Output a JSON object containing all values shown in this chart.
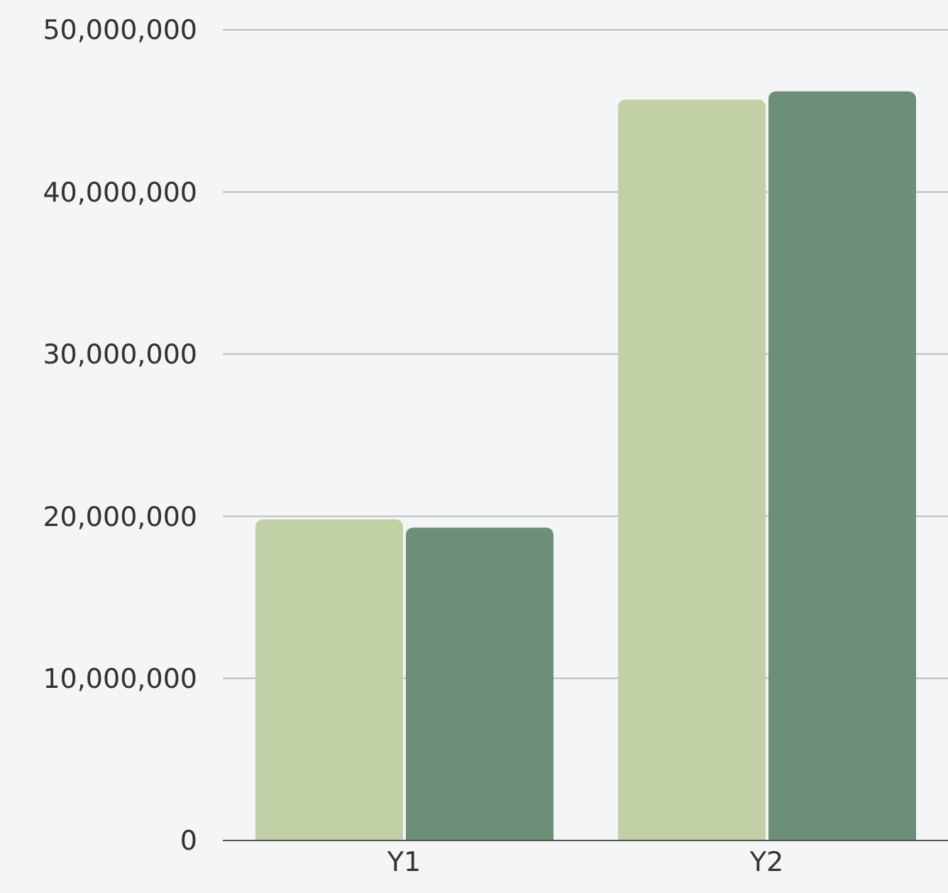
{
  "chart_data": {
    "type": "bar",
    "categories": [
      "Y1",
      "Y2"
    ],
    "series": [
      {
        "color": "#c2d0a5",
        "values": [
          19800000,
          45700000
        ]
      },
      {
        "color": "#6b9077",
        "values": [
          19300000,
          46200000
        ]
      }
    ],
    "ylim": [
      0,
      50000000
    ],
    "yticks": [
      0,
      {
        "value": 10000000,
        "label": "10,000,000"
      },
      {
        "value": 20000000,
        "label": "20,000,000"
      },
      {
        "value": 30000000,
        "label": "30,000,000"
      },
      {
        "value": 40000000,
        "label": "40,000,000"
      },
      {
        "value": 50000000,
        "label": "50,000,000"
      }
    ],
    "grid": "y",
    "legend": false
  }
}
